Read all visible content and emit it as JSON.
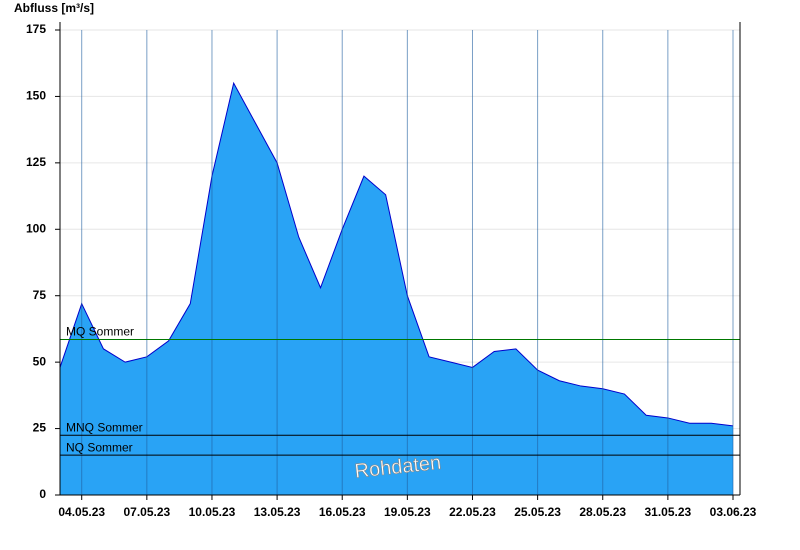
{
  "chart_data": {
    "type": "area",
    "title": "Abfluss [m³/s]",
    "watermark": "Rohdaten",
    "x": [
      "03.05.23",
      "04.05.23",
      "05.05.23",
      "06.05.23",
      "07.05.23",
      "08.05.23",
      "09.05.23",
      "10.05.23",
      "11.05.23",
      "12.05.23",
      "13.05.23",
      "14.05.23",
      "15.05.23",
      "16.05.23",
      "17.05.23",
      "18.05.23",
      "19.05.23",
      "20.05.23",
      "21.05.23",
      "22.05.23",
      "23.05.23",
      "24.05.23",
      "25.05.23",
      "26.05.23",
      "27.05.23",
      "28.05.23",
      "29.05.23",
      "30.05.23",
      "31.05.23",
      "01.06.23",
      "02.06.23",
      "03.06.23"
    ],
    "series": [
      {
        "name": "Abfluss",
        "color": "#29a3f5",
        "line_color": "#0000cc",
        "values": [
          48,
          72,
          55,
          50,
          52,
          58,
          72,
          120,
          155,
          140,
          125,
          97,
          78,
          100,
          120,
          113,
          75,
          52,
          50,
          48,
          54,
          55,
          47,
          43,
          41,
          40,
          38,
          30,
          29,
          27,
          27,
          26
        ]
      }
    ],
    "xlim": [
      "03.05.23",
      "03.06.23"
    ],
    "xticks": [
      "04.05.23",
      "07.05.23",
      "10.05.23",
      "13.05.23",
      "16.05.23",
      "19.05.23",
      "22.05.23",
      "25.05.23",
      "28.05.23",
      "31.05.23",
      "03.06.23"
    ],
    "ylim": [
      0,
      175
    ],
    "yticks": [
      0,
      25,
      50,
      75,
      100,
      125,
      150,
      175
    ],
    "grid": true,
    "reference_lines": [
      {
        "label": "MQ Sommer",
        "value": 58.5,
        "color": "#007700"
      },
      {
        "label": "MNQ Sommer",
        "value": 22.5,
        "color": "#000000"
      },
      {
        "label": "NQ Sommer",
        "value": 15,
        "color": "#000000"
      }
    ]
  }
}
